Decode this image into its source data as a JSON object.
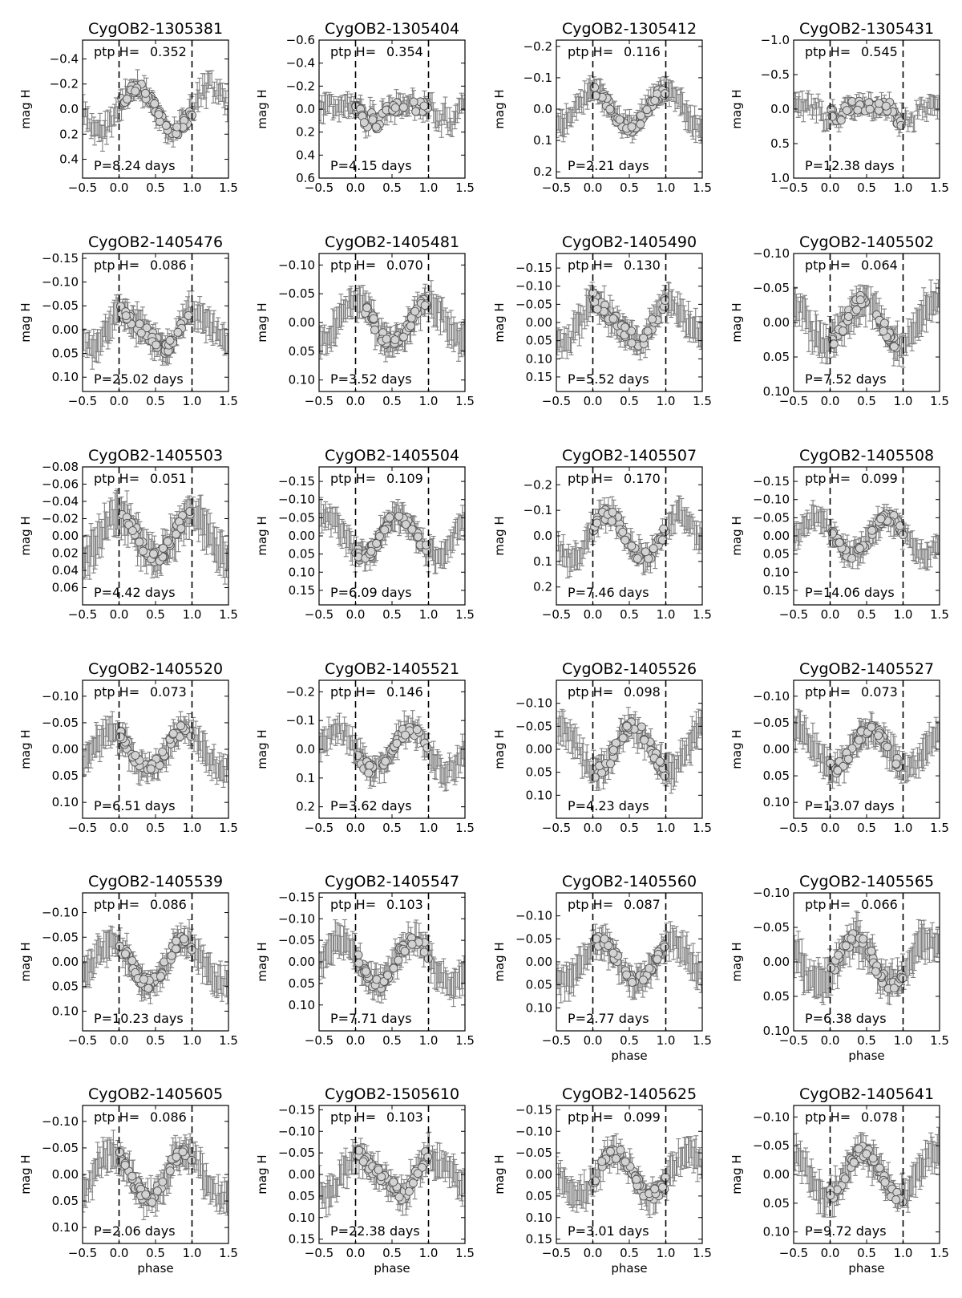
{
  "figure": {
    "common": {
      "x_ticks": [
        -0.5,
        0.0,
        0.5,
        1.0,
        1.5
      ],
      "xlim": [
        -0.5,
        1.5
      ],
      "ylabel": "mag H",
      "xlabel": "phase",
      "ptp_label": "ptp H=",
      "dashed_lines_at": [
        0.0,
        1.0
      ],
      "y_axis_inverted": true,
      "marker_fill": "#d3d3d3",
      "errorbar_color": "#808080"
    }
  },
  "chart_data": [
    {
      "type": "scatter",
      "title": "CygOB2-1305381",
      "ptp": "0.352",
      "period_label": "P=8.24 days",
      "period_days": 8.24,
      "ylim": [
        -0.55,
        0.55
      ],
      "yticks": [
        "−0.4",
        "−0.2",
        "0.0",
        "0.2",
        "0.4"
      ],
      "ytick_values": [
        -0.4,
        -0.2,
        0,
        0.2,
        0.4
      ],
      "xlabel": "",
      "ylabel": "mag H",
      "shape": "sine",
      "phase": 0.25
    },
    {
      "type": "scatter",
      "title": "CygOB2-1305404",
      "ptp": "0.354",
      "period_label": "P=4.15 days",
      "period_days": 4.15,
      "ylim": [
        -0.6,
        0.6
      ],
      "yticks": [
        "−0.6",
        "−0.4",
        "−0.2",
        "0.0",
        "0.2",
        "0.4",
        "0.6"
      ],
      "ytick_values": [
        -0.6,
        -0.4,
        -0.2,
        0,
        0.2,
        0.4,
        0.6
      ],
      "xlabel": "",
      "ylabel": "mag H",
      "shape": "dip",
      "phase": 0.2
    },
    {
      "type": "scatter",
      "title": "CygOB2-1305412",
      "ptp": "0.116",
      "period_label": "P=2.21 days",
      "period_days": 2.21,
      "ylim": [
        -0.22,
        0.22
      ],
      "yticks": [
        "−0.2",
        "−0.1",
        "0.0",
        "0.1",
        "0.2"
      ],
      "ytick_values": [
        -0.2,
        -0.1,
        0,
        0.1,
        0.2
      ],
      "xlabel": "",
      "ylabel": "mag H",
      "shape": "sine",
      "phase": 0.0
    },
    {
      "type": "scatter",
      "title": "CygOB2-1305431",
      "ptp": "0.545",
      "period_label": "P=12.38 days",
      "period_days": 12.38,
      "ylim": [
        -1.0,
        1.0
      ],
      "yticks": [
        "−1.0",
        "−0.5",
        "0.0",
        "0.5",
        "1.0"
      ],
      "ytick_values": [
        -1,
        -0.5,
        0,
        0.5,
        1
      ],
      "xlabel": "",
      "ylabel": "mag H",
      "shape": "dip",
      "phase": 0.0
    },
    {
      "type": "scatter",
      "title": "CygOB2-1405476",
      "ptp": "0.086",
      "period_label": "P=25.02 days",
      "period_days": 25.02,
      "ylim": [
        -0.16,
        0.13
      ],
      "yticks": [
        "−0.15",
        "−0.10",
        "−0.05",
        "0.00",
        "0.05",
        "0.10"
      ],
      "ytick_values": [
        -0.15,
        -0.1,
        -0.05,
        0,
        0.05,
        0.1
      ],
      "xlabel": "",
      "ylabel": "mag H",
      "shape": "saw",
      "phase": 0.0
    },
    {
      "type": "scatter",
      "title": "CygOB2-1405481",
      "ptp": "0.070",
      "period_label": "P=3.52 days",
      "period_days": 3.52,
      "ylim": [
        -0.12,
        0.12
      ],
      "yticks": [
        "−0.10",
        "−0.05",
        "0.00",
        "0.05",
        "0.10"
      ],
      "ytick_values": [
        -0.1,
        -0.05,
        0,
        0.05,
        0.1
      ],
      "xlabel": "",
      "ylabel": "mag H",
      "shape": "sine",
      "phase": 0.0
    },
    {
      "type": "scatter",
      "title": "CygOB2-1405490",
      "ptp": "0.130",
      "period_label": "P=5.52 days",
      "period_days": 5.52,
      "ylim": [
        -0.19,
        0.19
      ],
      "yticks": [
        "−0.15",
        "−0.10",
        "−0.05",
        "0.00",
        "0.05",
        "0.10",
        "0.15"
      ],
      "ytick_values": [
        -0.15,
        -0.1,
        -0.05,
        0,
        0.05,
        0.1,
        0.15
      ],
      "xlabel": "",
      "ylabel": "mag H",
      "shape": "saw",
      "phase": 0.0
    },
    {
      "type": "scatter",
      "title": "CygOB2-1405502",
      "ptp": "0.064",
      "period_label": "P=7.52 days",
      "period_days": 7.52,
      "ylim": [
        -0.1,
        0.1
      ],
      "yticks": [
        "−0.10",
        "−0.05",
        "0.00",
        "0.05",
        "0.10"
      ],
      "ytick_values": [
        -0.1,
        -0.05,
        0,
        0.05,
        0.1
      ],
      "xlabel": "",
      "ylabel": "mag H",
      "shape": "sine",
      "phase": 0.45
    },
    {
      "type": "scatter",
      "title": "CygOB2-1405503",
      "ptp": "0.051",
      "period_label": "P=4.42 days",
      "period_days": 4.42,
      "ylim": [
        -0.08,
        0.08
      ],
      "yticks": [
        "−0.08",
        "−0.06",
        "−0.04",
        "−0.02",
        "0.00",
        "0.02",
        "0.04",
        "0.06"
      ],
      "ytick_values": [
        -0.08,
        -0.06,
        -0.04,
        -0.02,
        0,
        0.02,
        0.04,
        0.06
      ],
      "xlabel": "",
      "ylabel": "mag H",
      "shape": "sine",
      "phase": 0.0
    },
    {
      "type": "scatter",
      "title": "CygOB2-1405504",
      "ptp": "0.109",
      "period_label": "P=6.09 days",
      "period_days": 6.09,
      "ylim": [
        -0.19,
        0.19
      ],
      "yticks": [
        "−0.15",
        "−0.10",
        "−0.05",
        "0.00",
        "0.05",
        "0.10",
        "0.15"
      ],
      "ytick_values": [
        -0.15,
        -0.1,
        -0.05,
        0,
        0.05,
        0.1,
        0.15
      ],
      "xlabel": "",
      "ylabel": "mag H",
      "shape": "sine",
      "phase": 0.6
    },
    {
      "type": "scatter",
      "title": "CygOB2-1405507",
      "ptp": "0.170",
      "period_label": "P=7.46 days",
      "period_days": 7.46,
      "ylim": [
        -0.27,
        0.27
      ],
      "yticks": [
        "−0.2",
        "−0.1",
        "0.0",
        "0.1",
        "0.2"
      ],
      "ytick_values": [
        -0.2,
        -0.1,
        0,
        0.1,
        0.2
      ],
      "xlabel": "",
      "ylabel": "mag H",
      "shape": "sine",
      "phase": 0.2
    },
    {
      "type": "scatter",
      "title": "CygOB2-1405508",
      "ptp": "0.099",
      "period_label": "P=14.06 days",
      "period_days": 14.06,
      "ylim": [
        -0.19,
        0.19
      ],
      "yticks": [
        "−0.15",
        "−0.10",
        "−0.05",
        "0.00",
        "0.05",
        "0.10",
        "0.15"
      ],
      "ytick_values": [
        -0.15,
        -0.1,
        -0.05,
        0,
        0.05,
        0.1,
        0.15
      ],
      "xlabel": "",
      "ylabel": "mag H",
      "shape": "sine",
      "phase": 0.8
    },
    {
      "type": "scatter",
      "title": "CygOB2-1405520",
      "ptp": "0.073",
      "period_label": "P=6.51 days",
      "period_days": 6.51,
      "ylim": [
        -0.13,
        0.13
      ],
      "yticks": [
        "−0.10",
        "−0.05",
        "0.00",
        "0.05",
        "0.10"
      ],
      "ytick_values": [
        -0.1,
        -0.05,
        0,
        0.05,
        0.1
      ],
      "xlabel": "",
      "ylabel": "mag H",
      "shape": "sine",
      "phase": 0.9
    },
    {
      "type": "scatter",
      "title": "CygOB2-1405521",
      "ptp": "0.146",
      "period_label": "P=3.62 days",
      "period_days": 3.62,
      "ylim": [
        -0.24,
        0.24
      ],
      "yticks": [
        "−0.2",
        "−0.1",
        "0.0",
        "0.1",
        "0.2"
      ],
      "ytick_values": [
        -0.2,
        -0.1,
        0,
        0.1,
        0.2
      ],
      "xlabel": "",
      "ylabel": "mag H",
      "shape": "sine",
      "phase": 0.75
    },
    {
      "type": "scatter",
      "title": "CygOB2-1405526",
      "ptp": "0.098",
      "period_label": "P=4.23 days",
      "period_days": 4.23,
      "ylim": [
        -0.15,
        0.15
      ],
      "yticks": [
        "−0.10",
        "−0.05",
        "0.00",
        "0.05",
        "0.10"
      ],
      "ytick_values": [
        -0.1,
        -0.05,
        0,
        0.05,
        0.1
      ],
      "xlabel": "",
      "ylabel": "mag H",
      "shape": "sine",
      "phase": 0.55
    },
    {
      "type": "scatter",
      "title": "CygOB2-1405527",
      "ptp": "0.073",
      "period_label": "P=13.07 days",
      "period_days": 13.07,
      "ylim": [
        -0.13,
        0.13
      ],
      "yticks": [
        "−0.10",
        "−0.05",
        "0.00",
        "0.05",
        "0.10"
      ],
      "ytick_values": [
        -0.1,
        -0.05,
        0,
        0.05,
        0.1
      ],
      "xlabel": "",
      "ylabel": "mag H",
      "shape": "sine",
      "phase": 0.55
    },
    {
      "type": "scatter",
      "title": "CygOB2-1405539",
      "ptp": "0.086",
      "period_label": "P=10.23 days",
      "period_days": 10.23,
      "ylim": [
        -0.14,
        0.14
      ],
      "yticks": [
        "−0.10",
        "−0.05",
        "0.00",
        "0.05",
        "0.10"
      ],
      "ytick_values": [
        -0.1,
        -0.05,
        0,
        0.05,
        0.1
      ],
      "xlabel": "",
      "ylabel": "mag H",
      "shape": "sine",
      "phase": 0.9
    },
    {
      "type": "scatter",
      "title": "CygOB2-1405547",
      "ptp": "0.103",
      "period_label": "P=7.71 days",
      "period_days": 7.71,
      "ylim": [
        -0.16,
        0.16
      ],
      "yticks": [
        "−0.15",
        "−0.10",
        "−0.05",
        "0.00",
        "0.05",
        "0.10"
      ],
      "ytick_values": [
        -0.15,
        -0.1,
        -0.05,
        0,
        0.05,
        0.1
      ],
      "xlabel": "",
      "ylabel": "mag H",
      "shape": "sine",
      "phase": 0.8
    },
    {
      "type": "scatter",
      "title": "CygOB2-1405560",
      "ptp": "0.087",
      "period_label": "P=2.77 days",
      "period_days": 2.77,
      "ylim": [
        -0.15,
        0.15
      ],
      "yticks": [
        "−0.10",
        "−0.05",
        "0.00",
        "0.05",
        "0.10"
      ],
      "ytick_values": [
        -0.1,
        -0.05,
        0,
        0.05,
        0.1
      ],
      "xlabel": "phase",
      "ylabel": "mag H",
      "shape": "sine",
      "phase": 0.1
    },
    {
      "type": "scatter",
      "title": "CygOB2-1405565",
      "ptp": "0.066",
      "period_label": "P=6.38 days",
      "period_days": 6.38,
      "ylim": [
        -0.1,
        0.1
      ],
      "yticks": [
        "−0.10",
        "−0.05",
        "0.00",
        "0.05",
        "0.10"
      ],
      "ytick_values": [
        -0.1,
        -0.05,
        0,
        0.05,
        0.1
      ],
      "xlabel": "phase",
      "ylabel": "mag H",
      "shape": "sine",
      "phase": 0.35
    },
    {
      "type": "scatter",
      "title": "CygOB2-1405605",
      "ptp": "0.086",
      "period_label": "P=2.06 days",
      "period_days": 2.06,
      "ylim": [
        -0.13,
        0.13
      ],
      "yticks": [
        "−0.10",
        "−0.05",
        "0.00",
        "0.05",
        "0.10"
      ],
      "ytick_values": [
        -0.1,
        -0.05,
        0,
        0.05,
        0.1
      ],
      "xlabel": "phase",
      "ylabel": "mag H",
      "shape": "sine",
      "phase": 0.9
    },
    {
      "type": "scatter",
      "title": "CygOB2-1505610",
      "ptp": "0.103",
      "period_label": "P=22.38 days",
      "period_days": 22.38,
      "ylim": [
        -0.16,
        0.16
      ],
      "yticks": [
        "−0.15",
        "−0.10",
        "−0.05",
        "0.00",
        "0.05",
        "0.10",
        "0.15"
      ],
      "ytick_values": [
        -0.15,
        -0.1,
        -0.05,
        0,
        0.05,
        0.1,
        0.15
      ],
      "xlabel": "phase",
      "ylabel": "mag H",
      "shape": "saw",
      "phase": 0.0
    },
    {
      "type": "scatter",
      "title": "CygOB2-1405625",
      "ptp": "0.099",
      "period_label": "P=3.01 days",
      "period_days": 3.01,
      "ylim": [
        -0.16,
        0.16
      ],
      "yticks": [
        "−0.15",
        "−0.10",
        "−0.05",
        "0.00",
        "0.05",
        "0.10",
        "0.15"
      ],
      "ytick_values": [
        -0.15,
        -0.1,
        -0.05,
        0,
        0.05,
        0.1,
        0.15
      ],
      "xlabel": "phase",
      "ylabel": "mag H",
      "shape": "sine",
      "phase": 0.3
    },
    {
      "type": "scatter",
      "title": "CygOB2-1405641",
      "ptp": "0.078",
      "period_label": "P=9.72 days",
      "period_days": 9.72,
      "ylim": [
        -0.12,
        0.12
      ],
      "yticks": [
        "−0.10",
        "−0.05",
        "0.00",
        "0.05",
        "0.10"
      ],
      "ytick_values": [
        -0.1,
        -0.05,
        0,
        0.05,
        0.1
      ],
      "xlabel": "phase",
      "ylabel": "mag H",
      "shape": "sine",
      "phase": 0.45
    }
  ]
}
